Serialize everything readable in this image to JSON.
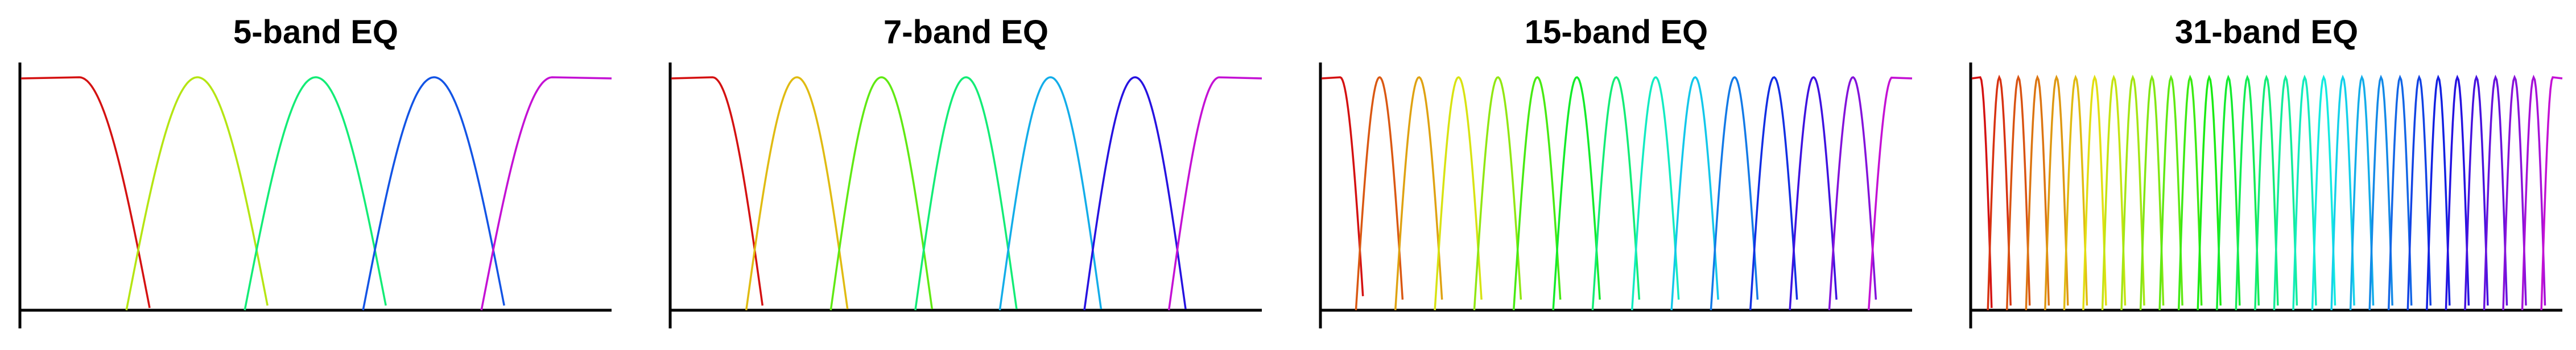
{
  "panels": [
    {
      "title": "5-band EQ"
    },
    {
      "title": "7-band EQ"
    },
    {
      "title": "15-band EQ"
    },
    {
      "title": "31-band EQ"
    }
  ]
}
